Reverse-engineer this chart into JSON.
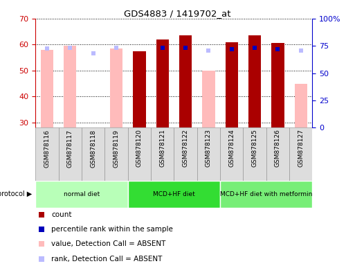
{
  "title": "GDS4883 / 1419702_at",
  "samples": [
    "GSM878116",
    "GSM878117",
    "GSM878118",
    "GSM878119",
    "GSM878120",
    "GSM878121",
    "GSM878122",
    "GSM878123",
    "GSM878124",
    "GSM878125",
    "GSM878126",
    "GSM878127"
  ],
  "count_values": [
    null,
    null,
    null,
    null,
    57.5,
    62.0,
    63.5,
    null,
    61.0,
    63.5,
    60.5,
    null
  ],
  "percentile_right": [
    null,
    null,
    null,
    null,
    null,
    73.0,
    73.0,
    null,
    72.0,
    73.0,
    72.0,
    null
  ],
  "value_absent": [
    58.0,
    59.5,
    null,
    58.5,
    null,
    null,
    null,
    50.0,
    null,
    null,
    null,
    45.0
  ],
  "rank_absent_right": [
    72.5,
    73.0,
    68.0,
    73.5,
    null,
    null,
    null,
    71.0,
    null,
    null,
    null,
    70.5
  ],
  "absent_flags": [
    true,
    true,
    true,
    true,
    false,
    false,
    false,
    true,
    false,
    false,
    false,
    true
  ],
  "protocols": [
    {
      "label": "normal diet",
      "start": 0,
      "end": 3
    },
    {
      "label": "MCD+HF diet",
      "start": 4,
      "end": 7
    },
    {
      "label": "MCD+HF diet with metformin",
      "start": 8,
      "end": 11
    }
  ],
  "proto_colors": [
    "#b8ffb8",
    "#33dd33",
    "#77ee77"
  ],
  "ylim_left": [
    28,
    70
  ],
  "ylim_right": [
    0,
    100
  ],
  "yticks_left": [
    30,
    40,
    50,
    60,
    70
  ],
  "yticks_right": [
    0,
    25,
    50,
    75,
    100
  ],
  "right_tick_labels": [
    "0",
    "25",
    "50",
    "75",
    "100%"
  ],
  "color_count": "#aa0000",
  "color_percentile": "#0000bb",
  "color_value_absent": "#ffbbbb",
  "color_rank_absent": "#bbbbff",
  "left_axis_color": "#cc0000",
  "right_axis_color": "#0000cc",
  "legend_items": [
    {
      "color": "#aa0000",
      "label": "count"
    },
    {
      "color": "#0000bb",
      "label": "percentile rank within the sample"
    },
    {
      "color": "#ffbbbb",
      "label": "value, Detection Call = ABSENT"
    },
    {
      "color": "#bbbbff",
      "label": "rank, Detection Call = ABSENT"
    }
  ]
}
